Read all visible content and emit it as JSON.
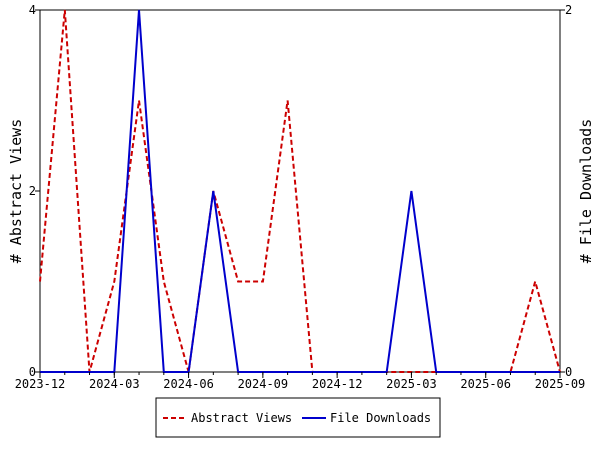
{
  "chart_data": {
    "type": "line",
    "x": [
      "2023-12",
      "2024-01",
      "2024-02",
      "2024-03",
      "2024-04",
      "2024-05",
      "2024-06",
      "2024-07",
      "2024-08",
      "2024-09",
      "2024-10",
      "2024-11",
      "2024-12",
      "2025-01",
      "2025-02",
      "2025-03",
      "2025-04",
      "2025-05",
      "2025-06",
      "2025-07",
      "2025-08",
      "2025-09"
    ],
    "x_tick_labels": [
      "2023-12",
      "2024-03",
      "2024-06",
      "2024-09",
      "2024-12",
      "2025-03",
      "2025-06",
      "2025-09"
    ],
    "series": [
      {
        "name": "Abstract Views",
        "axis": "left",
        "color": "#cc0000",
        "dash": "dashed",
        "values": [
          1,
          4,
          0,
          1,
          3,
          1,
          0,
          2,
          1,
          1,
          3,
          0,
          0,
          0,
          0,
          0,
          0,
          0,
          0,
          0,
          1,
          0
        ]
      },
      {
        "name": "File Downloads",
        "axis": "right",
        "color": "#0000cc",
        "dash": "solid",
        "values": [
          0,
          0,
          0,
          0,
          2,
          0,
          0,
          1,
          0,
          0,
          0,
          0,
          0,
          0,
          0,
          1,
          0,
          0,
          0,
          0,
          0,
          0
        ]
      }
    ],
    "ylabel": "# Abstract Views",
    "y2label": "# File Downloads",
    "ylim": [
      0,
      4
    ],
    "y2lim": [
      0,
      2
    ],
    "y_ticks": [
      "0",
      "2",
      "4"
    ],
    "y2_ticks": [
      "0",
      "2"
    ],
    "grid": false,
    "legend_placement": "bottom-center"
  }
}
